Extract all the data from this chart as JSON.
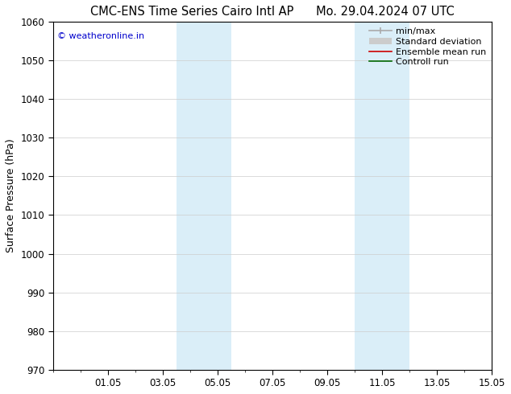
{
  "title_left": "CMC-ENS Time Series Cairo Intl AP",
  "title_right": "Mo. 29.04.2024 07 UTC",
  "ylabel": "Surface Pressure (hPa)",
  "ylim": [
    970,
    1060
  ],
  "yticks": [
    970,
    980,
    990,
    1000,
    1010,
    1020,
    1030,
    1040,
    1050,
    1060
  ],
  "xlim": [
    0,
    16
  ],
  "xtick_positions": [
    2,
    4,
    6,
    8,
    10,
    12,
    14,
    16
  ],
  "xtick_labels": [
    "01.05",
    "03.05",
    "05.05",
    "07.05",
    "09.05",
    "11.05",
    "13.05",
    "15.05"
  ],
  "shaded_bands": [
    {
      "xstart": 4.5,
      "xend": 6.5
    },
    {
      "xstart": 11.0,
      "xend": 13.0
    }
  ],
  "shaded_color": "#daeef8",
  "legend_items": [
    {
      "label": "min/max",
      "color": "#aaaaaa",
      "lw": 1.2
    },
    {
      "label": "Standard deviation",
      "color": "#cccccc",
      "lw": 7
    },
    {
      "label": "Ensemble mean run",
      "color": "#cc0000",
      "lw": 1.2
    },
    {
      "label": "Controll run",
      "color": "#006600",
      "lw": 1.2
    }
  ],
  "watermark": "© weatheronline.in",
  "watermark_color": "#0000cc",
  "background_color": "#ffffff",
  "grid_color": "#cccccc",
  "title_fontsize": 10.5,
  "ylabel_fontsize": 9,
  "tick_fontsize": 8.5,
  "legend_fontsize": 8,
  "watermark_fontsize": 8
}
